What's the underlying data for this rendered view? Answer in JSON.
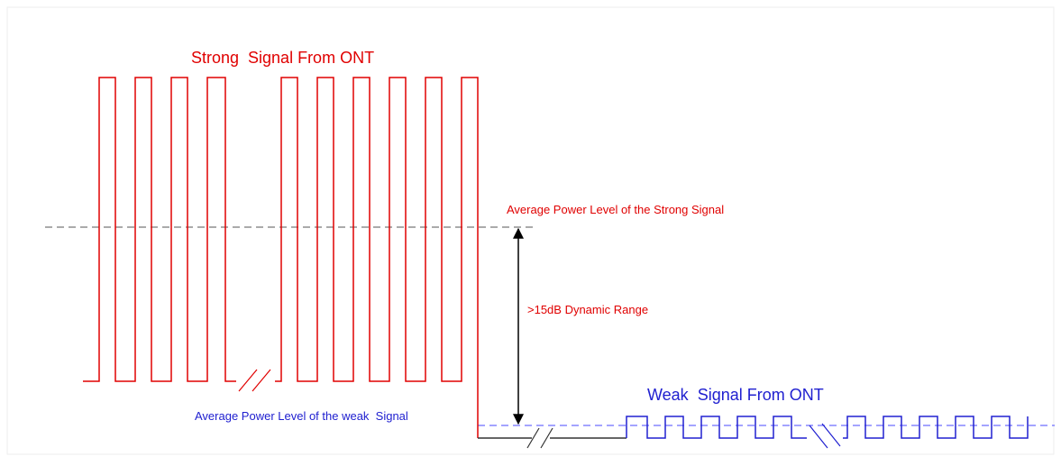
{
  "diagram": {
    "strong_signal_label": "Strong  Signal From ONT",
    "strong_average_label": "Average Power Level of the Strong Signal",
    "dynamic_range_label": ">15dB Dynamic Range",
    "weak_signal_label": "Weak  Signal From ONT",
    "weak_average_label": "Average Power Level of the weak  Signal"
  }
}
